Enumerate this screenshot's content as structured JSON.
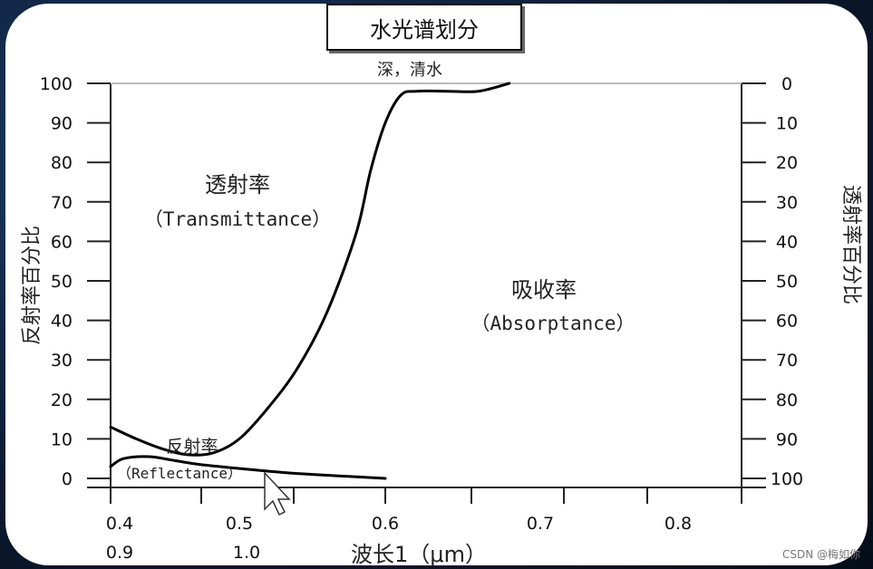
{
  "chart_data": {
    "type": "line",
    "title": "水光谱划分",
    "y_left": {
      "label": "反射率百分比",
      "ticks": [
        0,
        10,
        20,
        30,
        40,
        50,
        60,
        70,
        80,
        90,
        100
      ],
      "range": [
        0,
        100
      ]
    },
    "y_right": {
      "label": "透射率百分比",
      "ticks": [
        0,
        10,
        20,
        30,
        40,
        50,
        60,
        70,
        80,
        90,
        100
      ],
      "range": [
        0,
        100
      ],
      "inverted": true
    },
    "x": {
      "label": "波长1（μm）",
      "ticks_row1": [
        "0.4",
        "0.5",
        "0.6",
        "0.7",
        "0.8"
      ],
      "ticks_row2": [
        "0.9",
        "1.0"
      ],
      "range": [
        0.4,
        0.8
      ]
    },
    "annotations": {
      "transmittance_cn": "透射率",
      "transmittance_en": "（Transmittance）",
      "absorptance_cn": "吸收率",
      "absorptance_en": "（Absorptance）",
      "reflectance_cn": "反射率",
      "reflectance_en": "（Reflectance）",
      "deep_water": "深，清水"
    },
    "series": [
      {
        "values": [
          [
            0.4,
            13
          ],
          [
            0.42,
            10
          ],
          [
            0.44,
            7.5
          ],
          [
            0.46,
            6
          ],
          [
            0.48,
            6.5
          ],
          [
            0.5,
            10
          ],
          [
            0.52,
            18
          ],
          [
            0.54,
            28
          ],
          [
            0.56,
            42
          ],
          [
            0.58,
            62
          ],
          [
            0.59,
            78
          ],
          [
            0.6,
            90
          ],
          [
            0.61,
            97
          ],
          [
            0.62,
            98
          ],
          [
            0.64,
            98
          ],
          [
            0.66,
            98
          ],
          [
            0.68,
            100
          ]
        ]
      },
      {
        "values": [
          [
            0.4,
            3
          ],
          [
            0.41,
            5
          ],
          [
            0.43,
            5.5
          ],
          [
            0.45,
            4.5
          ],
          [
            0.47,
            3.5
          ],
          [
            0.5,
            2.5
          ],
          [
            0.53,
            1.5
          ],
          [
            0.56,
            0.8
          ],
          [
            0.6,
            0
          ]
        ]
      }
    ],
    "grid": false
  },
  "watermark": "CSDN @梅如你"
}
